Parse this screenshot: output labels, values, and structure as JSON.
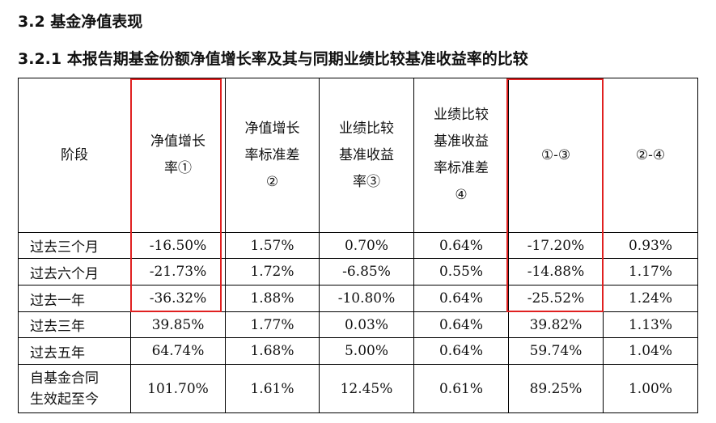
{
  "section": {
    "title": "3.2  基金净值表现"
  },
  "subsection": {
    "title": "3.2.1  本报告期基金份额净值增长率及其与同期业绩比较基准收益率的比较"
  },
  "table": {
    "headers": [
      [
        "阶段"
      ],
      [
        "净值增长",
        "率①"
      ],
      [
        "净值增长",
        "率标准差",
        "②"
      ],
      [
        "业绩比较",
        "基准收益",
        "率③"
      ],
      [
        "业绩比较",
        "基准收益",
        "率标准差",
        "④"
      ],
      [
        "①-③"
      ],
      [
        "②-④"
      ]
    ],
    "rows": [
      {
        "stage": [
          "过去三个月"
        ],
        "values": [
          "-16.50%",
          "1.57%",
          "0.70%",
          "0.64%",
          "-17.20%",
          "0.93%"
        ]
      },
      {
        "stage": [
          "过去六个月"
        ],
        "values": [
          "-21.73%",
          "1.72%",
          "-6.85%",
          "0.55%",
          "-14.88%",
          "1.17%"
        ]
      },
      {
        "stage": [
          "过去一年"
        ],
        "values": [
          "-36.32%",
          "1.88%",
          "-10.80%",
          "0.64%",
          "-25.52%",
          "1.24%"
        ]
      },
      {
        "stage": [
          "过去三年"
        ],
        "values": [
          "39.85%",
          "1.77%",
          "0.03%",
          "0.64%",
          "39.82%",
          "1.13%"
        ]
      },
      {
        "stage": [
          "过去五年"
        ],
        "values": [
          "64.74%",
          "1.68%",
          "5.00%",
          "0.64%",
          "59.74%",
          "1.04%"
        ]
      },
      {
        "stage": [
          "自基金合同",
          "生效起至今"
        ],
        "values": [
          "101.70%",
          "1.61%",
          "12.45%",
          "0.61%",
          "89.25%",
          "1.00%"
        ]
      }
    ]
  },
  "colors": {
    "highlight": "#e02020",
    "border": "#000000",
    "text": "#111111"
  }
}
